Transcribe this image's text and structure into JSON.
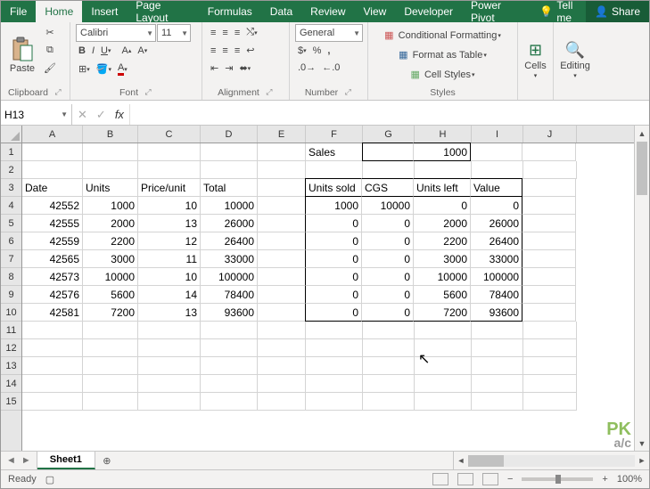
{
  "tabs": [
    "File",
    "Home",
    "Insert",
    "Page Layout",
    "Formulas",
    "Data",
    "Review",
    "View",
    "Developer",
    "Power Pivot"
  ],
  "active_tab": "Home",
  "tellme": "Tell me",
  "share": "Share",
  "ribbon": {
    "clipboard": {
      "label": "Clipboard",
      "paste": "Paste"
    },
    "font": {
      "label": "Font",
      "name": "Calibri",
      "size": "11"
    },
    "alignment": {
      "label": "Alignment"
    },
    "number": {
      "label": "Number",
      "format": "General"
    },
    "styles": {
      "label": "Styles",
      "cond": "Conditional Formatting",
      "tbl": "Format as Table",
      "cell": "Cell Styles"
    },
    "cells": {
      "label": "Cells"
    },
    "editing": {
      "label": "Editing"
    }
  },
  "namebox": "H13",
  "columns": [
    "A",
    "B",
    "C",
    "D",
    "E",
    "F",
    "G",
    "H",
    "I",
    "J"
  ],
  "rows": [
    "1",
    "2",
    "3",
    "4",
    "5",
    "6",
    "7",
    "8",
    "9",
    "10",
    "11",
    "12",
    "13",
    "14",
    "15"
  ],
  "cells": {
    "F1": "Sales",
    "H1": "1000",
    "A3": "Date",
    "B3": "Units",
    "C3": "Price/unit",
    "D3": "Total",
    "F3": "Units sold",
    "G3": "CGS",
    "H3": "Units left",
    "I3": "Value",
    "A4": "42552",
    "B4": "1000",
    "C4": "10",
    "D4": "10000",
    "F4": "1000",
    "G4": "10000",
    "H4": "0",
    "I4": "0",
    "A5": "42555",
    "B5": "2000",
    "C5": "13",
    "D5": "26000",
    "F5": "0",
    "G5": "0",
    "H5": "2000",
    "I5": "26000",
    "A6": "42559",
    "B6": "2200",
    "C6": "12",
    "D6": "26400",
    "F6": "0",
    "G6": "0",
    "H6": "2200",
    "I6": "26400",
    "A7": "42565",
    "B7": "3000",
    "C7": "11",
    "D7": "33000",
    "F7": "0",
    "G7": "0",
    "H7": "3000",
    "I7": "33000",
    "A8": "42573",
    "B8": "10000",
    "C8": "10",
    "D8": "100000",
    "F8": "0",
    "G8": "0",
    "H8": "10000",
    "I8": "100000",
    "A9": "42576",
    "B9": "5600",
    "C9": "14",
    "D9": "78400",
    "F9": "0",
    "G9": "0",
    "H9": "5600",
    "I9": "78400",
    "A10": "42581",
    "B10": "7200",
    "C10": "13",
    "D10": "93600",
    "F10": "0",
    "G10": "0",
    "H10": "7200",
    "I10": "93600"
  },
  "sheet": {
    "name": "Sheet1"
  },
  "status": {
    "ready": "Ready",
    "zoom": "100%"
  },
  "watermark": {
    "top": "PK",
    "bot": "a/c"
  }
}
